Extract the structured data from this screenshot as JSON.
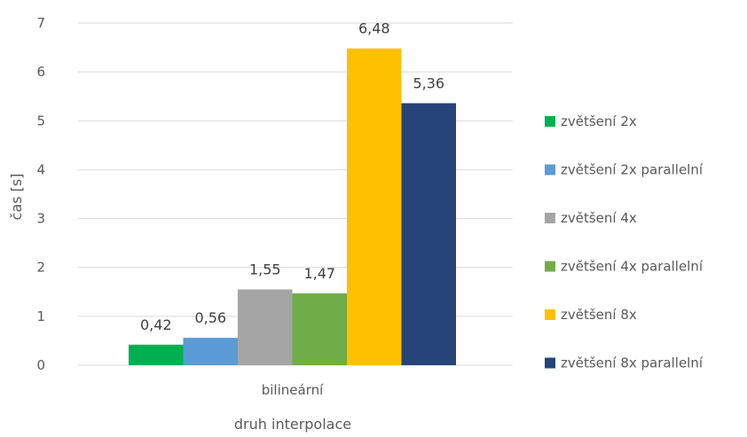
{
  "chart_data": {
    "type": "bar",
    "title": "",
    "xlabel": "druh interpolace",
    "ylabel": "čas [s]",
    "categories": [
      "bilineární"
    ],
    "ylim": [
      0,
      7
    ],
    "yticks": [
      "0",
      "1",
      "2",
      "3",
      "4",
      "5",
      "6",
      "7"
    ],
    "grid": true,
    "legend_position": "right",
    "series": [
      {
        "name": "zvětšení 2x",
        "values": [
          0.42
        ],
        "value_label": "0,42",
        "color": "#00b050"
      },
      {
        "name": "zvětšení 2x parallelní",
        "values": [
          0.56
        ],
        "value_label": "0,56",
        "color": "#5b9bd5"
      },
      {
        "name": "zvětšení 4x",
        "values": [
          1.55
        ],
        "value_label": "1,55",
        "color": "#a5a5a5"
      },
      {
        "name": "zvětšení 4x parallelní",
        "values": [
          1.47
        ],
        "value_label": "1,47",
        "color": "#70ad47"
      },
      {
        "name": "zvětšení 8x",
        "values": [
          6.48
        ],
        "value_label": "6,48",
        "color": "#ffc000"
      },
      {
        "name": "zvětšení 8x parallelní",
        "values": [
          5.36
        ],
        "value_label": "5,36",
        "color": "#264478"
      }
    ]
  }
}
